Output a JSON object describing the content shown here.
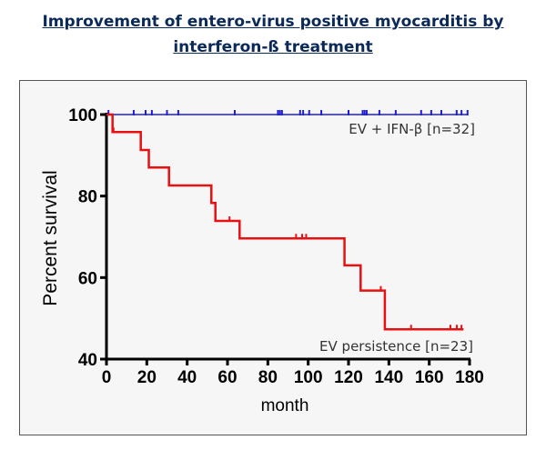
{
  "title_line1": "Improvement of entero-virus positive myocarditis by",
  "title_line2": "interferon-ß treatment",
  "chart_data": {
    "type": "line",
    "subtype": "kaplan-meier",
    "xlabel": "month",
    "ylabel": "Percent survival",
    "xlim": [
      0,
      180
    ],
    "ylim": [
      40,
      100
    ],
    "xticks": [
      0,
      20,
      40,
      60,
      80,
      100,
      120,
      140,
      160,
      180
    ],
    "yticks": [
      40,
      60,
      80,
      100
    ],
    "series": [
      {
        "name": "EV + IFN-β [n=32]",
        "color": "#1f1fd6",
        "steps": [
          [
            0,
            100
          ],
          [
            179,
            100
          ]
        ],
        "censored": [
          1,
          13.5,
          19.4,
          22.5,
          30,
          35.6,
          63.6,
          85,
          86,
          87,
          96,
          97.5,
          100.5,
          106.5,
          120,
          127,
          128,
          129,
          135.3,
          143.4,
          156,
          161,
          166,
          173.6,
          176,
          179
        ]
      },
      {
        "name": "EV persistence [n=23]",
        "color": "#e81010",
        "steps": [
          [
            0,
            100
          ],
          [
            3,
            95.7
          ],
          [
            17,
            91.3
          ],
          [
            21,
            87
          ],
          [
            31,
            82.6
          ],
          [
            52,
            78.3
          ],
          [
            54,
            73.9
          ],
          [
            66,
            69.6
          ],
          [
            118,
            63
          ],
          [
            126,
            56.8
          ],
          [
            138,
            47.3
          ],
          [
            177,
            47.3
          ]
        ],
        "censored": [
          3.5,
          61,
          94,
          97,
          99,
          136,
          151,
          170.5,
          173.7,
          176
        ]
      }
    ]
  }
}
